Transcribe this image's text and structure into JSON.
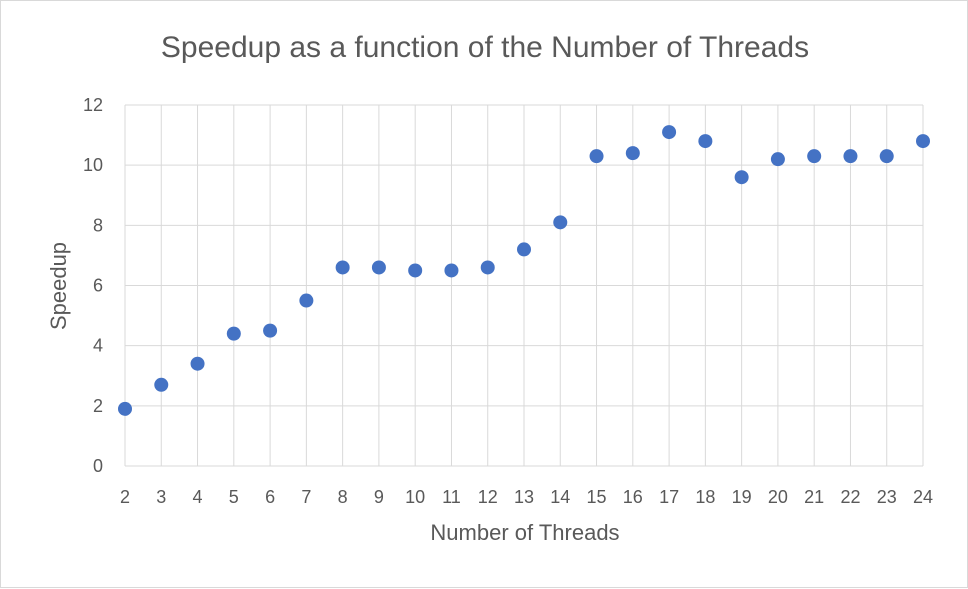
{
  "chart_data": {
    "type": "scatter",
    "title": "Speedup as a function of the Number of Threads",
    "xlabel": "Number of Threads",
    "ylabel": "Speedup",
    "x": [
      2,
      3,
      4,
      5,
      6,
      7,
      8,
      9,
      10,
      11,
      12,
      13,
      14,
      15,
      16,
      17,
      18,
      19,
      20,
      21,
      22,
      23,
      24
    ],
    "y": [
      1.9,
      2.7,
      3.4,
      4.4,
      4.5,
      5.5,
      6.6,
      6.6,
      6.5,
      6.5,
      6.6,
      7.2,
      8.1,
      10.3,
      10.4,
      11.1,
      10.8,
      9.6,
      10.2,
      10.3,
      10.3,
      10.3,
      10.8
    ],
    "xlim": [
      2,
      24
    ],
    "ylim": [
      0,
      12
    ],
    "yticks": [
      0,
      2,
      4,
      6,
      8,
      10,
      12
    ],
    "grid": true,
    "marker_color": "#4472c4",
    "grid_color": "#d9d9d9"
  }
}
